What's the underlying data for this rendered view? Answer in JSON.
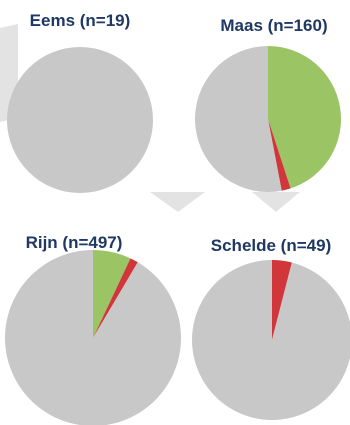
{
  "colors": {
    "green": "#9bc464",
    "red": "#d0363a",
    "grey": "#c8c8c8",
    "title": "#1f3864"
  },
  "chart_data": [
    {
      "type": "pie",
      "title": "Eems (n=19)",
      "slices": [
        {
          "color": "green",
          "value": 0
        },
        {
          "color": "red",
          "value": 0
        },
        {
          "color": "grey",
          "value": 100
        }
      ]
    },
    {
      "type": "pie",
      "title": "Maas (n=160)",
      "slices": [
        {
          "color": "green",
          "value": 45
        },
        {
          "color": "red",
          "value": 2
        },
        {
          "color": "grey",
          "value": 53
        }
      ]
    },
    {
      "type": "pie",
      "title": "Rijn (n=497)",
      "slices": [
        {
          "color": "green",
          "value": 7
        },
        {
          "color": "red",
          "value": 1.5
        },
        {
          "color": "grey",
          "value": 91.5
        }
      ]
    },
    {
      "type": "pie",
      "title": "Schelde (n=49)",
      "slices": [
        {
          "color": "green",
          "value": 0
        },
        {
          "color": "red",
          "value": 4
        },
        {
          "color": "grey",
          "value": 96
        }
      ]
    }
  ]
}
